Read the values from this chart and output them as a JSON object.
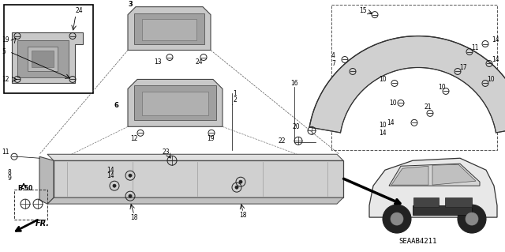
{
  "bg_color": "#ffffff",
  "line_color": "#000000",
  "diagram_code": "SEAAB4211",
  "fig_w": 6.4,
  "fig_h": 3.19,
  "dpi": 100
}
